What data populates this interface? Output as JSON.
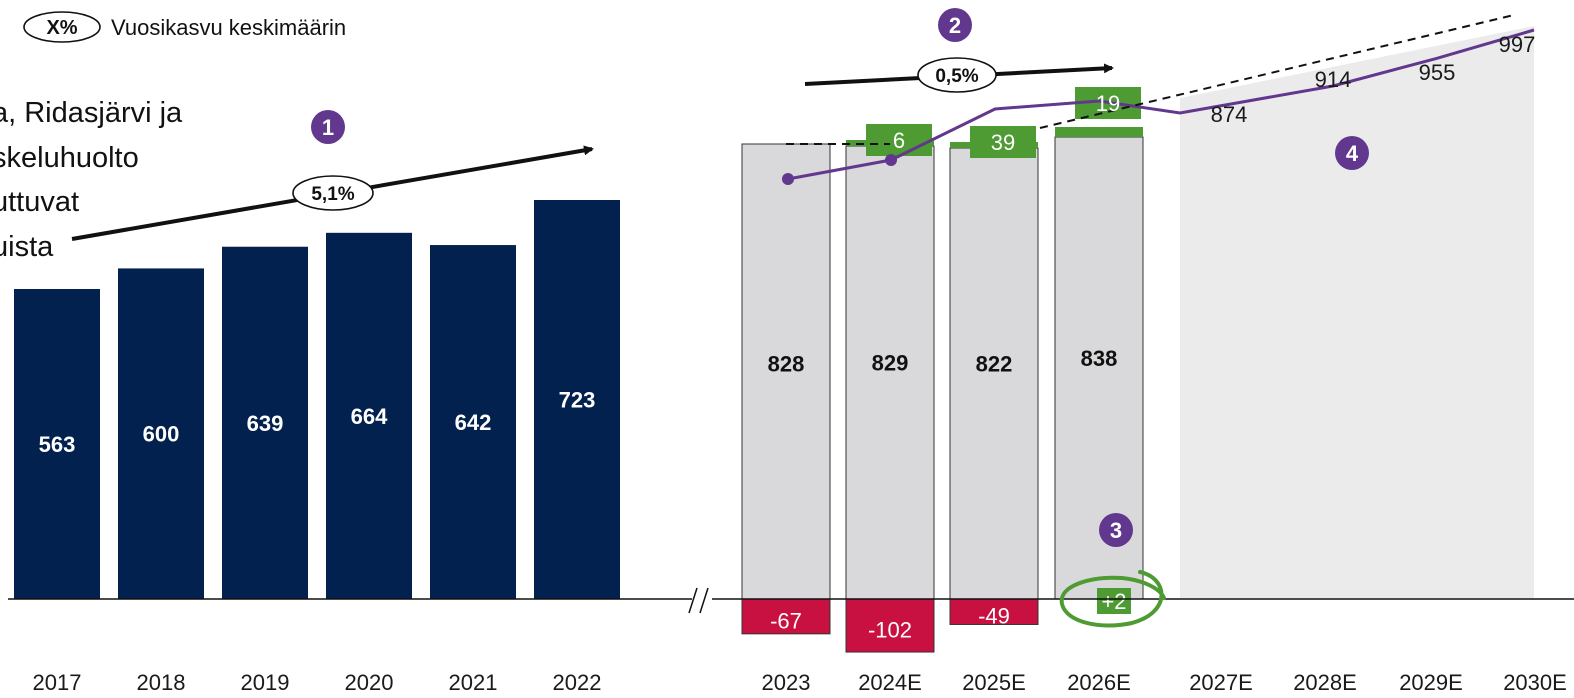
{
  "legend": {
    "symbol": "X%",
    "text": "Vuosikasvu keskimäärin"
  },
  "left_text": [
    "a, Ridasjärvi ja",
    "skeluhuolto",
    "uttuvat",
    "uista"
  ],
  "badges": [
    "1",
    "2",
    "3",
    "4"
  ],
  "colors": {
    "navy": "#03214F",
    "gray_bar": "#D9D9DB",
    "forecast_area": "#EBEBEB",
    "green": "#4E9A33",
    "red": "#C81140",
    "purple": "#62378E",
    "text": "#1a1a1a"
  },
  "chart_data": [
    {
      "type": "bar",
      "categories": [
        "2017",
        "2018",
        "2019",
        "2020",
        "2021",
        "2022"
      ],
      "values": [
        563,
        600,
        639,
        664,
        642,
        723
      ],
      "cagr_label": "5,1%"
    },
    {
      "type": "bar",
      "categories": [
        "2023",
        "2024E",
        "2025E",
        "2026E"
      ],
      "base_values": [
        828,
        829,
        822,
        838
      ],
      "increases": [
        null,
        6,
        39,
        19
      ],
      "decreases": [
        -67,
        -102,
        -49,
        null
      ],
      "net_change_label": "+2",
      "cagr_label": "0,5%"
    },
    {
      "type": "line",
      "x": [
        "2027E",
        "2028E",
        "2029E",
        "2030E"
      ],
      "values": [
        874,
        914,
        955,
        997
      ]
    }
  ]
}
